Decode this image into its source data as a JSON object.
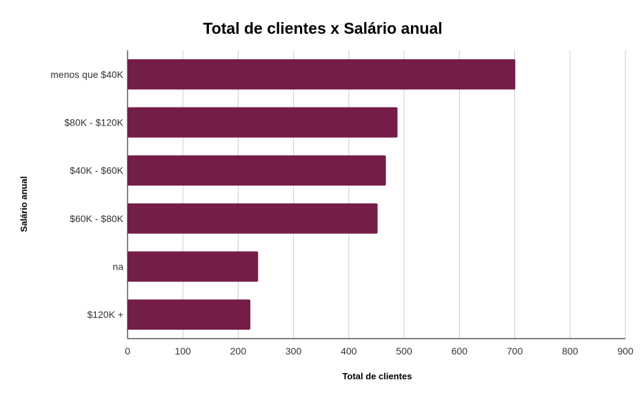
{
  "chart_data": {
    "type": "bar",
    "orientation": "horizontal",
    "title": "Total de clientes x Salário anual",
    "xlabel": "Total de clientes",
    "ylabel": "Salário anual",
    "categories": [
      "menos que $40K",
      "$80K - $120K",
      "$40K - $60K",
      "$60K - $80K",
      "na",
      "$120K +"
    ],
    "values": [
      701,
      488,
      467,
      452,
      236,
      222
    ],
    "xlim": [
      0,
      900
    ],
    "xticks": [
      "0",
      "100",
      "200",
      "300",
      "400",
      "500",
      "600",
      "700",
      "800",
      "900"
    ],
    "grid": true,
    "legend": "none",
    "bar_color": "#741d48"
  }
}
